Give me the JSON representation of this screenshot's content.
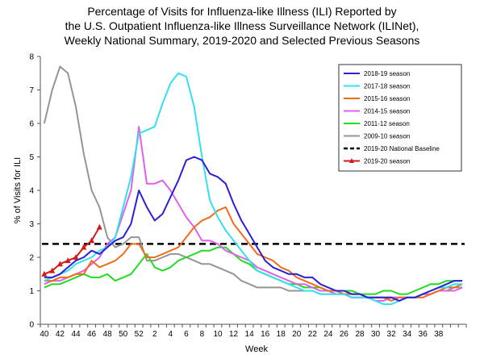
{
  "title_lines": [
    "Percentage of Visits for Influenza-like Illness (ILI) Reported by",
    "the U.S. Outpatient Influenza-like Illness Surveillance Network (ILINet),",
    "Weekly National Summary, 2019-2020 and Selected Previous Seasons"
  ],
  "chart_data": {
    "type": "line",
    "xlabel": "Week",
    "ylabel": "% of Visits for ILI",
    "ylim": [
      0,
      8
    ],
    "yticks": [
      "0",
      "1",
      "2",
      "3",
      "4",
      "5",
      "6",
      "7",
      "8"
    ],
    "x_tick_labels": [
      "40",
      "42",
      "44",
      "46",
      "48",
      "50",
      "52",
      "2",
      "4",
      "6",
      "8",
      "10",
      "12",
      "14",
      "16",
      "18",
      "20",
      "22",
      "24",
      "26",
      "28",
      "30",
      "32",
      "34",
      "36",
      "38"
    ],
    "grid": false,
    "legend_position": "top-right",
    "baseline": {
      "name": "2019-20 National Baseline",
      "value": 2.4,
      "color": "#000000"
    },
    "series": [
      {
        "name": "2018-19 season",
        "color": "#2b20d4",
        "values": [
          1.4,
          1.4,
          1.5,
          1.7,
          1.9,
          2.0,
          2.2,
          2.1,
          2.3,
          2.5,
          2.6,
          3.0,
          4.0,
          3.5,
          3.1,
          3.3,
          3.8,
          4.3,
          4.9,
          5.0,
          4.9,
          4.5,
          4.4,
          4.2,
          3.6,
          3.1,
          2.7,
          2.3,
          1.9,
          1.7,
          1.6,
          1.5,
          1.5,
          1.4,
          1.4,
          1.2,
          1.1,
          1.0,
          1.0,
          0.9,
          0.9,
          0.8,
          0.8,
          0.8,
          0.8,
          0.7,
          0.8,
          0.8,
          0.9,
          1.0,
          1.1,
          1.2,
          1.3,
          1.3
        ]
      },
      {
        "name": "2017-18 season",
        "color": "#33e0ef",
        "values": [
          1.3,
          1.4,
          1.5,
          1.6,
          1.8,
          1.9,
          2.0,
          2.2,
          2.3,
          2.6,
          3.5,
          4.4,
          5.7,
          5.8,
          5.9,
          6.6,
          7.2,
          7.5,
          7.4,
          6.5,
          5.0,
          3.7,
          3.2,
          2.8,
          2.5,
          2.2,
          1.9,
          1.6,
          1.5,
          1.4,
          1.3,
          1.2,
          1.1,
          1.0,
          1.0,
          0.9,
          0.9,
          0.9,
          0.9,
          0.8,
          0.8,
          0.8,
          0.7,
          0.6,
          0.6,
          0.7,
          0.8,
          0.8,
          0.9,
          1.0,
          1.1,
          1.1,
          1.2,
          1.2
        ]
      },
      {
        "name": "2015-16 season",
        "color": "#ef6c1a",
        "values": [
          1.3,
          1.3,
          1.4,
          1.4,
          1.5,
          1.5,
          1.9,
          1.7,
          1.8,
          1.9,
          2.1,
          2.4,
          2.4,
          2.0,
          2.0,
          2.1,
          2.2,
          2.3,
          2.6,
          2.9,
          3.1,
          3.2,
          3.4,
          3.5,
          3.0,
          2.7,
          2.4,
          2.1,
          2.0,
          1.9,
          1.7,
          1.6,
          1.4,
          1.3,
          1.2,
          1.1,
          1.0,
          1.0,
          0.9,
          0.9,
          0.9,
          0.8,
          0.8,
          0.8,
          0.7,
          0.8,
          0.8,
          0.8,
          0.8,
          0.9,
          1.0,
          1.1,
          1.1,
          1.2
        ]
      },
      {
        "name": "2014-15 season",
        "color": "#e060e8",
        "values": [
          1.2,
          1.3,
          1.3,
          1.4,
          1.5,
          1.6,
          1.8,
          2.0,
          2.4,
          2.6,
          3.3,
          4.0,
          5.9,
          4.2,
          4.2,
          4.3,
          4.0,
          3.6,
          3.2,
          2.9,
          2.5,
          2.5,
          2.4,
          2.2,
          2.1,
          2.0,
          1.9,
          1.7,
          1.6,
          1.5,
          1.4,
          1.3,
          1.2,
          1.2,
          1.1,
          1.0,
          1.0,
          0.9,
          0.9,
          0.8,
          0.8,
          0.8,
          0.7,
          0.7,
          0.8,
          0.8,
          0.8,
          0.8,
          0.9,
          0.9,
          1.0,
          1.0,
          1.0,
          1.1
        ]
      },
      {
        "name": "2011-12 season",
        "color": "#22dc22",
        "values": [
          1.1,
          1.2,
          1.2,
          1.3,
          1.4,
          1.5,
          1.4,
          1.4,
          1.5,
          1.3,
          1.4,
          1.5,
          1.8,
          2.1,
          1.7,
          1.6,
          1.7,
          1.9,
          2.0,
          2.1,
          2.2,
          2.2,
          2.3,
          2.3,
          2.1,
          1.9,
          1.8,
          1.6,
          1.5,
          1.4,
          1.3,
          1.2,
          1.2,
          1.1,
          1.1,
          1.1,
          1.0,
          1.0,
          1.0,
          1.0,
          0.9,
          0.9,
          0.9,
          1.0,
          1.0,
          0.9,
          0.9,
          1.0,
          1.1,
          1.2,
          1.2,
          1.3,
          1.3,
          1.3
        ]
      },
      {
        "name": "2009-10 season",
        "color": "#959595",
        "values": [
          6.0,
          7.0,
          7.7,
          7.5,
          6.5,
          5.1,
          4.0,
          3.5,
          2.6,
          2.3,
          2.4,
          2.6,
          2.6,
          1.9,
          1.9,
          2.0,
          2.1,
          2.1,
          2.0,
          1.9,
          1.8,
          1.8,
          1.7,
          1.6,
          1.5,
          1.3,
          1.2,
          1.1,
          1.1,
          1.1,
          1.1,
          1.0,
          1.0,
          1.0,
          1.0,
          0.9,
          0.9,
          0.9,
          0.9,
          0.8,
          0.8,
          0.8,
          0.8,
          0.8,
          0.8,
          0.8,
          0.8,
          0.8,
          0.9,
          0.9,
          1.0,
          1.0,
          1.1,
          1.1
        ]
      },
      {
        "name": "2019-20 season",
        "color": "#d11a1a",
        "markers": true,
        "values": [
          1.5,
          1.6,
          1.8,
          1.9,
          2.0,
          2.3,
          2.5,
          2.9
        ]
      }
    ]
  }
}
